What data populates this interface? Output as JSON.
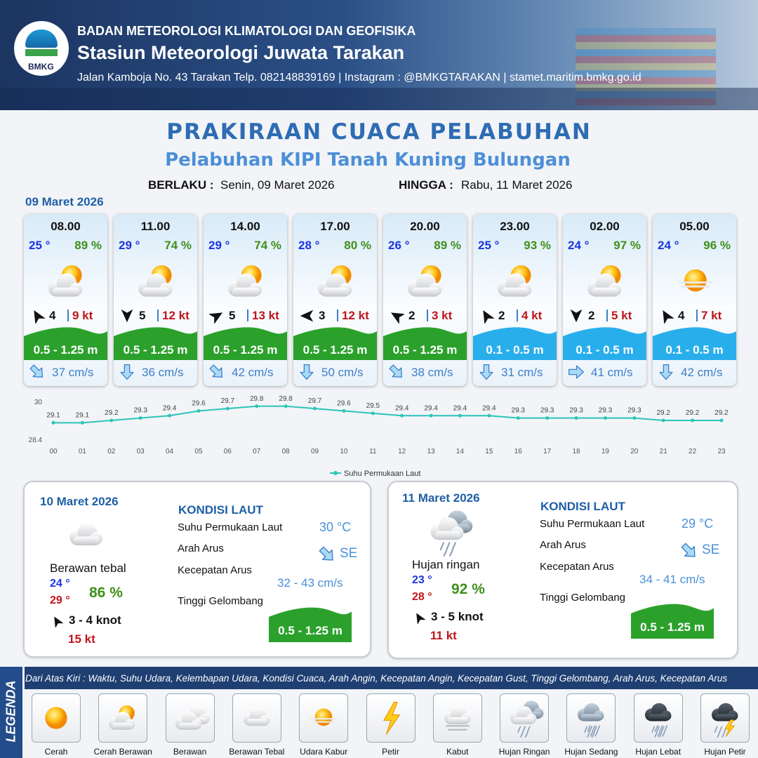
{
  "header": {
    "logo": "BMKG",
    "org": "BADAN METEOROLOGI KLIMATOLOGI DAN GEOFISIKA",
    "station": "Stasiun Meteorologi Juwata Tarakan",
    "contact": "Jalan Kamboja No. 43 Tarakan  Telp. 082148839169 | Instagram : @BMKGTARAKAN | stamet.maritim.bmkg.go.id"
  },
  "title": "PRAKIRAAN CUACA PELABUHAN",
  "subtitle": "Pelabuhan KIPI Tanah Kuning Bulungan",
  "validity": {
    "from_label": "BERLAKU :",
    "from": "Senin, 09 Maret 2026",
    "to_label": "HINGGA :",
    "to": "Rabu, 11 Maret 2026"
  },
  "day1": {
    "date": "09 Maret 2026",
    "forecasts": [
      {
        "time": "08.00",
        "temp": "25 °",
        "humidity": "89 %",
        "wind": "4",
        "gust": "9 kt",
        "wave": "0.5 - 1.25 m",
        "wave_color": "#2ba12b",
        "current": "37 cm/s"
      },
      {
        "time": "11.00",
        "temp": "29 °",
        "humidity": "74 %",
        "wind": "5",
        "gust": "12 kt",
        "wave": "0.5 - 1.25 m",
        "wave_color": "#2ba12b",
        "current": "36 cm/s"
      },
      {
        "time": "14.00",
        "temp": "29 °",
        "humidity": "74 %",
        "wind": "5",
        "gust": "13 kt",
        "wave": "0.5 - 1.25 m",
        "wave_color": "#2ba12b",
        "current": "42 cm/s"
      },
      {
        "time": "17.00",
        "temp": "28 °",
        "humidity": "80 %",
        "wind": "3",
        "gust": "12 kt",
        "wave": "0.5 - 1.25 m",
        "wave_color": "#2ba12b",
        "current": "50 cm/s"
      },
      {
        "time": "20.00",
        "temp": "26 °",
        "humidity": "89 %",
        "wind": "2",
        "gust": "3 kt",
        "wave": "0.5 - 1.25 m",
        "wave_color": "#2ba12b",
        "current": "38 cm/s"
      },
      {
        "time": "23.00",
        "temp": "25 °",
        "humidity": "93 %",
        "wind": "2",
        "gust": "4 kt",
        "wave": "0.1 - 0.5 m",
        "wave_color": "#29aeec",
        "current": "31 cm/s"
      },
      {
        "time": "02.00",
        "temp": "24 °",
        "humidity": "97 %",
        "wind": "2",
        "gust": "5 kt",
        "wave": "0.1 - 0.5 m",
        "wave_color": "#29aeec",
        "current": "41 cm/s"
      },
      {
        "time": "05.00",
        "temp": "24 °",
        "humidity": "96 %",
        "wind": "4",
        "gust": "7 kt",
        "wave": "0.1 - 0.5 m",
        "wave_color": "#29aeec",
        "current": "42 cm/s"
      }
    ]
  },
  "chart_data": {
    "type": "line",
    "categories": [
      "00",
      "01",
      "02",
      "03",
      "04",
      "05",
      "06",
      "07",
      "08",
      "09",
      "10",
      "11",
      "12",
      "13",
      "14",
      "15",
      "16",
      "17",
      "18",
      "19",
      "20",
      "21",
      "22",
      "23"
    ],
    "series": [
      {
        "name": "Suhu Permukaan Laut",
        "color": "#2cc4b8",
        "values": [
          29.1,
          29.1,
          29.2,
          29.3,
          29.4,
          29.6,
          29.7,
          29.8,
          29.8,
          29.7,
          29.6,
          29.5,
          29.4,
          29.4,
          29.4,
          29.4,
          29.3,
          29.3,
          29.3,
          29.3,
          29.3,
          29.2,
          29.2,
          29.2
        ]
      }
    ],
    "ylim": [
      28.4,
      30
    ],
    "yticks": [
      28.4,
      30
    ],
    "grid": false
  },
  "outlook": [
    {
      "date": "10 Maret 2026",
      "weather": "Berawan tebal",
      "temp_min": "24 °",
      "temp_max": "29 °",
      "humidity": "86 %",
      "wind": "3  - 4 knot",
      "gust": "15 kt",
      "sea_title": "KONDISI LAUT",
      "sea": [
        {
          "label": "Suhu Permukaan Laut",
          "value": "30 °C"
        },
        {
          "label": "Arah Arus",
          "value": "SE"
        },
        {
          "label": "Kecepatan Arus",
          "value": "32 - 43 cm/s"
        },
        {
          "label": "Tinggi Gelombang",
          "value": "0.5 - 1.25 m"
        }
      ]
    },
    {
      "date": "11 Maret 2026",
      "weather": "Hujan ringan",
      "temp_min": "23 °",
      "temp_max": "28 °",
      "humidity": "92 %",
      "wind": "3  - 5 knot",
      "gust": "11 kt",
      "sea_title": "KONDISI LAUT",
      "sea": [
        {
          "label": "Suhu Permukaan Laut",
          "value": "29 °C"
        },
        {
          "label": "Arah Arus",
          "value": "SE"
        },
        {
          "label": "Kecepatan Arus",
          "value": "34 - 41 cm/s"
        },
        {
          "label": "Tinggi Gelombang",
          "value": "0.5 - 1.25 m"
        }
      ]
    }
  ],
  "legend": {
    "title": "LEGENDA",
    "description": "Dari Atas Kiri : Waktu, Suhu Udara, Kelembapan Udara, Kondisi Cuaca, Arah Angin, Kecepatan Angin, Kecepatan Gust, Tinggi Gelombang, Arah Arus, Kecepatan Arus",
    "items": [
      "Cerah",
      "Cerah Berawan",
      "Berawan",
      "Berawan Tebal",
      "Udara Kabur",
      "Petir",
      "Kabut",
      "Hujan Ringan",
      "Hujan Sedang",
      "Hujan Lebat",
      "Hujan Petir"
    ]
  }
}
